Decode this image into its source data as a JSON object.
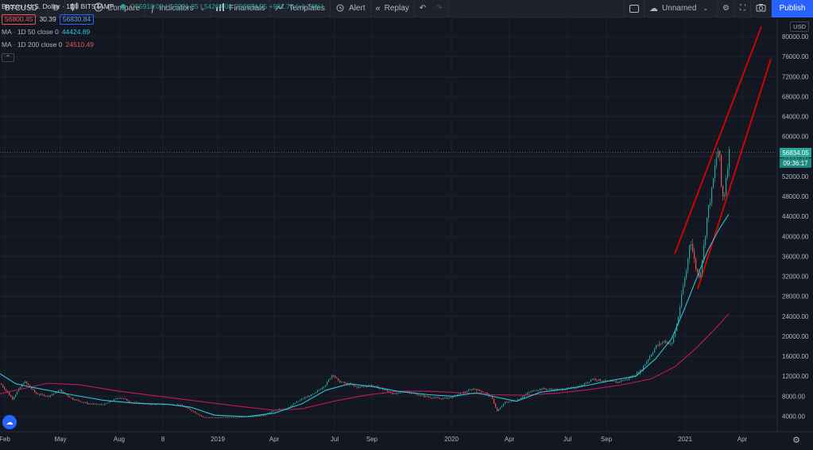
{
  "toolbar": {
    "symbol": "BTCUSD",
    "interval": "D",
    "compare_label": "Compare",
    "indicators_label": "Indicators",
    "financials_label": "Financials",
    "templates_label": "Templates",
    "alert_label": "Alert",
    "replay_label": "Replay",
    "layout_name": "Unnamed",
    "publish_label": "Publish"
  },
  "legend": {
    "title": "Bitcoin / U.S. Dollar · 1D · BITSTAMP",
    "open_key": "O",
    "open": "55918.09",
    "high_key": "H",
    "high": "57231.35",
    "low_key": "L",
    "low": "54269.00",
    "close_key": "C",
    "close": "56834.05",
    "change": "+981.76 (+1.76%)",
    "sell_price": "56800.45",
    "spread": "30.39",
    "buy_price": "56830.84",
    "ma50_label": "MA · 1D 50 close 0",
    "ma50_value": "44424.89",
    "ma200_label": "MA · 1D 200 close 0",
    "ma200_value": "24510.49"
  },
  "price_axis": {
    "currency": "USD",
    "last_price": "56834.05",
    "countdown": "09:36:17",
    "ticks": [
      "80000.00",
      "76000.00",
      "72000.00",
      "68000.00",
      "64000.00",
      "60000.00",
      "56000.00",
      "52000.00",
      "48000.00",
      "44000.00",
      "40000.00",
      "36000.00",
      "32000.00",
      "28000.00",
      "24000.00",
      "20000.00",
      "16000.00",
      "12000.00",
      "8000.00",
      "4000.00"
    ]
  },
  "time_axis": {
    "ticks": [
      "Feb",
      "May",
      "Aug",
      "8",
      "2019",
      "Apr",
      "Jul",
      "Sep",
      "2020",
      "Apr",
      "Jul",
      "Sep",
      "2021",
      "Apr"
    ]
  },
  "colors": {
    "background": "#131722",
    "up": "#26a69a",
    "down": "#ef5350",
    "ma50": "#26c6da",
    "ma200": "#c2185b",
    "trendline": "#e00000",
    "accent": "#2962ff"
  },
  "icons": {
    "chart_type": "candles-icon",
    "compare": "plus-circle-icon",
    "indicators": "function-icon",
    "financials": "bar-chart-icon",
    "templates": "templates-icon",
    "alert": "alarm-clock-icon",
    "replay": "replay-icon",
    "undo": "undo-icon",
    "redo": "redo-icon",
    "cloud": "cloud-icon",
    "settings": "gear-icon",
    "fullscreen": "fullscreen-icon",
    "snapshot": "camera-icon"
  }
}
